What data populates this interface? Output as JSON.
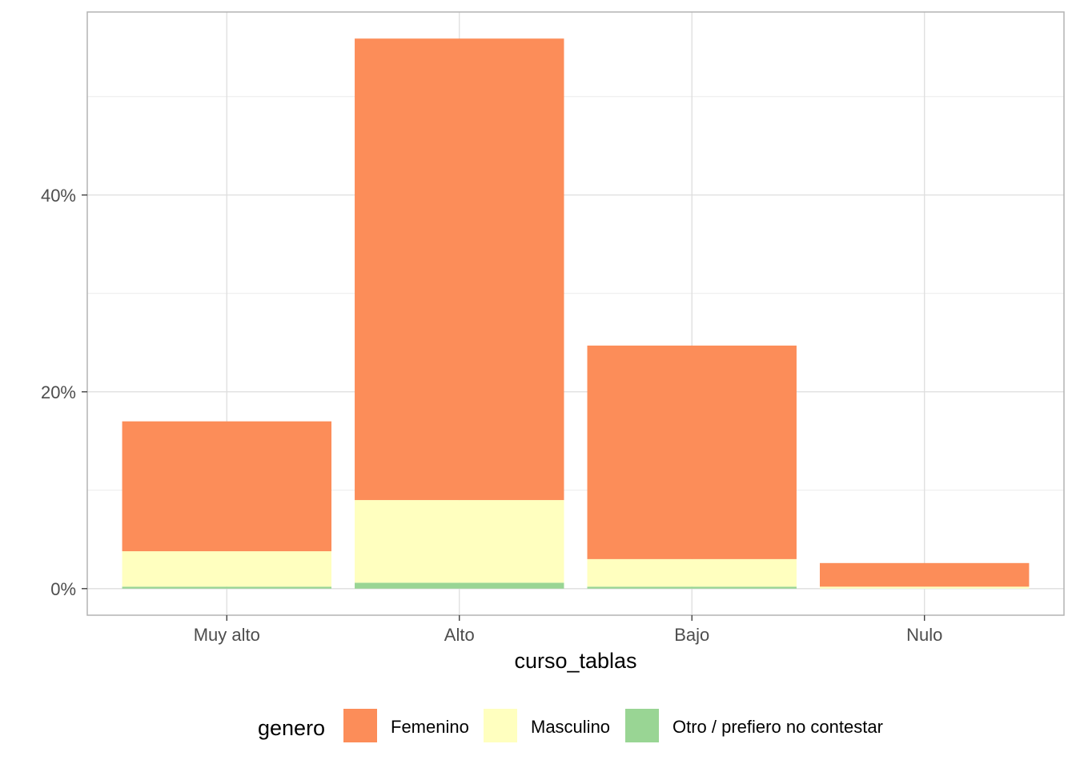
{
  "chart_data": {
    "type": "bar",
    "stacked": true,
    "categories": [
      "Muy alto",
      "Alto",
      "Bajo",
      "Nulo"
    ],
    "series": [
      {
        "name": "Otro / prefiero no contestar",
        "color": "#99d594",
        "values": [
          0.2,
          0.6,
          0.2,
          0.0
        ]
      },
      {
        "name": "Masculino",
        "color": "#ffffbf",
        "values": [
          3.6,
          8.4,
          2.8,
          0.2
        ]
      },
      {
        "name": "Femenino",
        "color": "#fc8d59",
        "values": [
          13.2,
          46.9,
          21.7,
          2.4
        ]
      }
    ],
    "legend_order": [
      "Femenino",
      "Masculino",
      "Otro / prefiero no contestar"
    ],
    "title": "",
    "xlabel": "curso_tablas",
    "ylabel": "",
    "ylim": [
      -2.7,
      58.6
    ],
    "yticks": [
      0,
      20,
      40
    ],
    "ytick_labels": [
      "0%",
      "20%",
      "40%"
    ],
    "y_minor_gridlines": [
      10,
      30,
      50
    ],
    "legend_title": "genero",
    "legend_position": "bottom",
    "grid": true,
    "panel_border": true
  }
}
